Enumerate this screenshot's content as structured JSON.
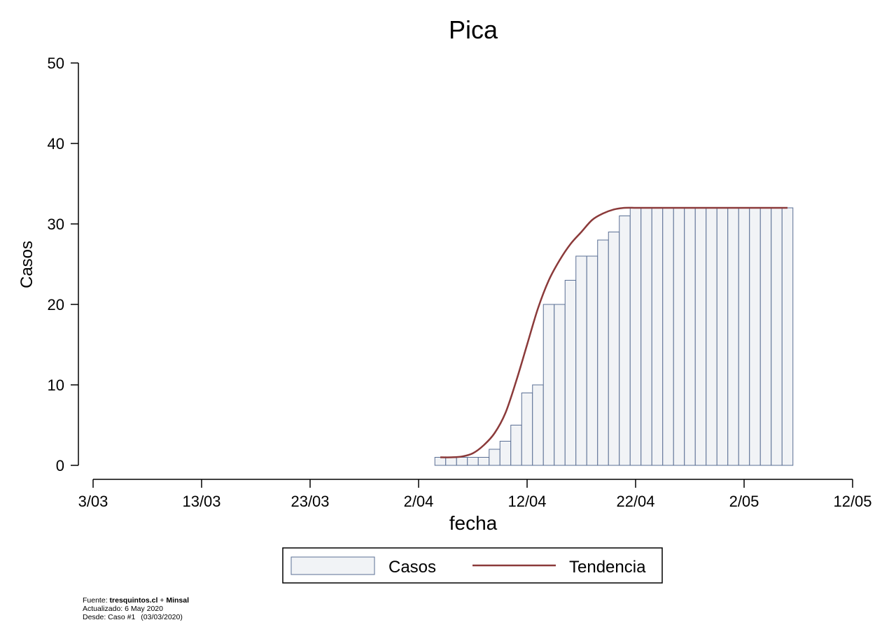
{
  "chart_data": {
    "type": "bar",
    "title": "Pica",
    "xlabel": "fecha",
    "ylabel": "Casos",
    "ylim": [
      0,
      50
    ],
    "yticks": [
      0,
      10,
      20,
      30,
      40,
      50
    ],
    "xlim": [
      "2020-03-03",
      "2020-05-12"
    ],
    "xticks": [
      {
        "date": "2020-03-03",
        "label": "3/03"
      },
      {
        "date": "2020-03-13",
        "label": "13/03"
      },
      {
        "date": "2020-03-23",
        "label": "23/03"
      },
      {
        "date": "2020-04-02",
        "label": "2/04"
      },
      {
        "date": "2020-04-12",
        "label": "12/04"
      },
      {
        "date": "2020-04-22",
        "label": "22/04"
      },
      {
        "date": "2020-05-02",
        "label": "2/05"
      },
      {
        "date": "2020-05-12",
        "label": "12/05"
      }
    ],
    "grid": false,
    "legend_position": "bottom-center",
    "series": [
      {
        "name": "Casos",
        "kind": "bar",
        "color": "#f1f3f6",
        "edge_color": "#5a6f94",
        "x": [
          "2020-04-04",
          "2020-04-05",
          "2020-04-06",
          "2020-04-07",
          "2020-04-08",
          "2020-04-09",
          "2020-04-10",
          "2020-04-11",
          "2020-04-12",
          "2020-04-13",
          "2020-04-14",
          "2020-04-15",
          "2020-04-16",
          "2020-04-17",
          "2020-04-18",
          "2020-04-19",
          "2020-04-20",
          "2020-04-21",
          "2020-04-22",
          "2020-04-23",
          "2020-04-24",
          "2020-04-25",
          "2020-04-26",
          "2020-04-27",
          "2020-04-28",
          "2020-04-29",
          "2020-04-30",
          "2020-05-01",
          "2020-05-02",
          "2020-05-03",
          "2020-05-04",
          "2020-05-05",
          "2020-05-06"
        ],
        "y": [
          1,
          1,
          1,
          1,
          1,
          2,
          3,
          5,
          9,
          10,
          20,
          20,
          23,
          26,
          26,
          28,
          29,
          31,
          32,
          32,
          32,
          32,
          32,
          32,
          32,
          32,
          32,
          32,
          32,
          32,
          32,
          32,
          32
        ]
      },
      {
        "name": "Tendencia",
        "kind": "line",
        "color": "#8b3a3a",
        "x": [
          "2020-04-04",
          "2020-04-05",
          "2020-04-06",
          "2020-04-07",
          "2020-04-08",
          "2020-04-09",
          "2020-04-10",
          "2020-04-11",
          "2020-04-12",
          "2020-04-13",
          "2020-04-14",
          "2020-04-15",
          "2020-04-16",
          "2020-04-17",
          "2020-04-18",
          "2020-04-19",
          "2020-04-20",
          "2020-04-21",
          "2020-04-22",
          "2020-04-23",
          "2020-04-24",
          "2020-04-25",
          "2020-04-26",
          "2020-04-27",
          "2020-04-28",
          "2020-04-29",
          "2020-04-30",
          "2020-05-01",
          "2020-05-02",
          "2020-05-03",
          "2020-05-04",
          "2020-05-05",
          "2020-05-06"
        ],
        "y": [
          1,
          1,
          1.1,
          1.5,
          2.5,
          4,
          6.5,
          10.5,
          15,
          19.5,
          23,
          25.5,
          27.5,
          29,
          30.5,
          31.3,
          31.8,
          32,
          32,
          32,
          32,
          32,
          32,
          32,
          32,
          32,
          32,
          32,
          32,
          32,
          32,
          32,
          32
        ]
      }
    ]
  },
  "footer": {
    "source_prefix": "Fuente: ",
    "source_site": "tresquintos.cl",
    "source_plus": " + ",
    "source_org": "Minsal",
    "updated": "Actualizado: 6 May 2020",
    "since_prefix": "Desde: Caso #1",
    "since_date": "(03/03/2020)"
  }
}
